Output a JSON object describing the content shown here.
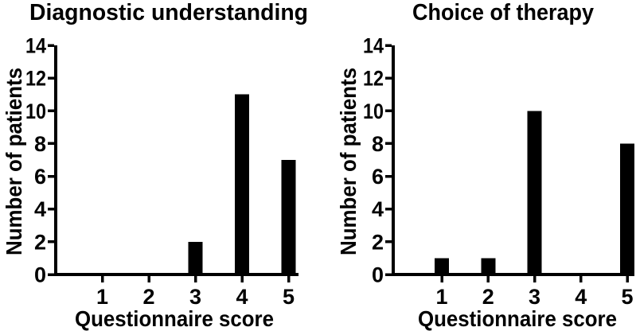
{
  "figure": {
    "background": "#ffffff",
    "bar_color": "#000000",
    "axis_color": "#000000",
    "text_color": "#000000"
  },
  "chart_data": [
    {
      "type": "bar",
      "title": "Diagnostic understanding",
      "xlabel": "Questionnaire score",
      "ylabel": "Number of patients",
      "categories": [
        "1",
        "2",
        "3",
        "4",
        "5"
      ],
      "values": [
        0,
        0,
        2,
        11,
        7
      ],
      "ylim": [
        0,
        14
      ],
      "yticks": [
        "0",
        "2",
        "4",
        "6",
        "8",
        "10",
        "12",
        "14"
      ],
      "grid": false,
      "legend": "none"
    },
    {
      "type": "bar",
      "title": "Choice of therapy",
      "xlabel": "Questionnaire score",
      "ylabel": "Number of patients",
      "categories": [
        "1",
        "2",
        "3",
        "4",
        "5"
      ],
      "values": [
        1,
        1,
        10,
        0,
        8
      ],
      "ylim": [
        0,
        14
      ],
      "yticks": [
        "0",
        "2",
        "4",
        "6",
        "8",
        "10",
        "12",
        "14"
      ],
      "grid": false,
      "legend": "none"
    }
  ]
}
